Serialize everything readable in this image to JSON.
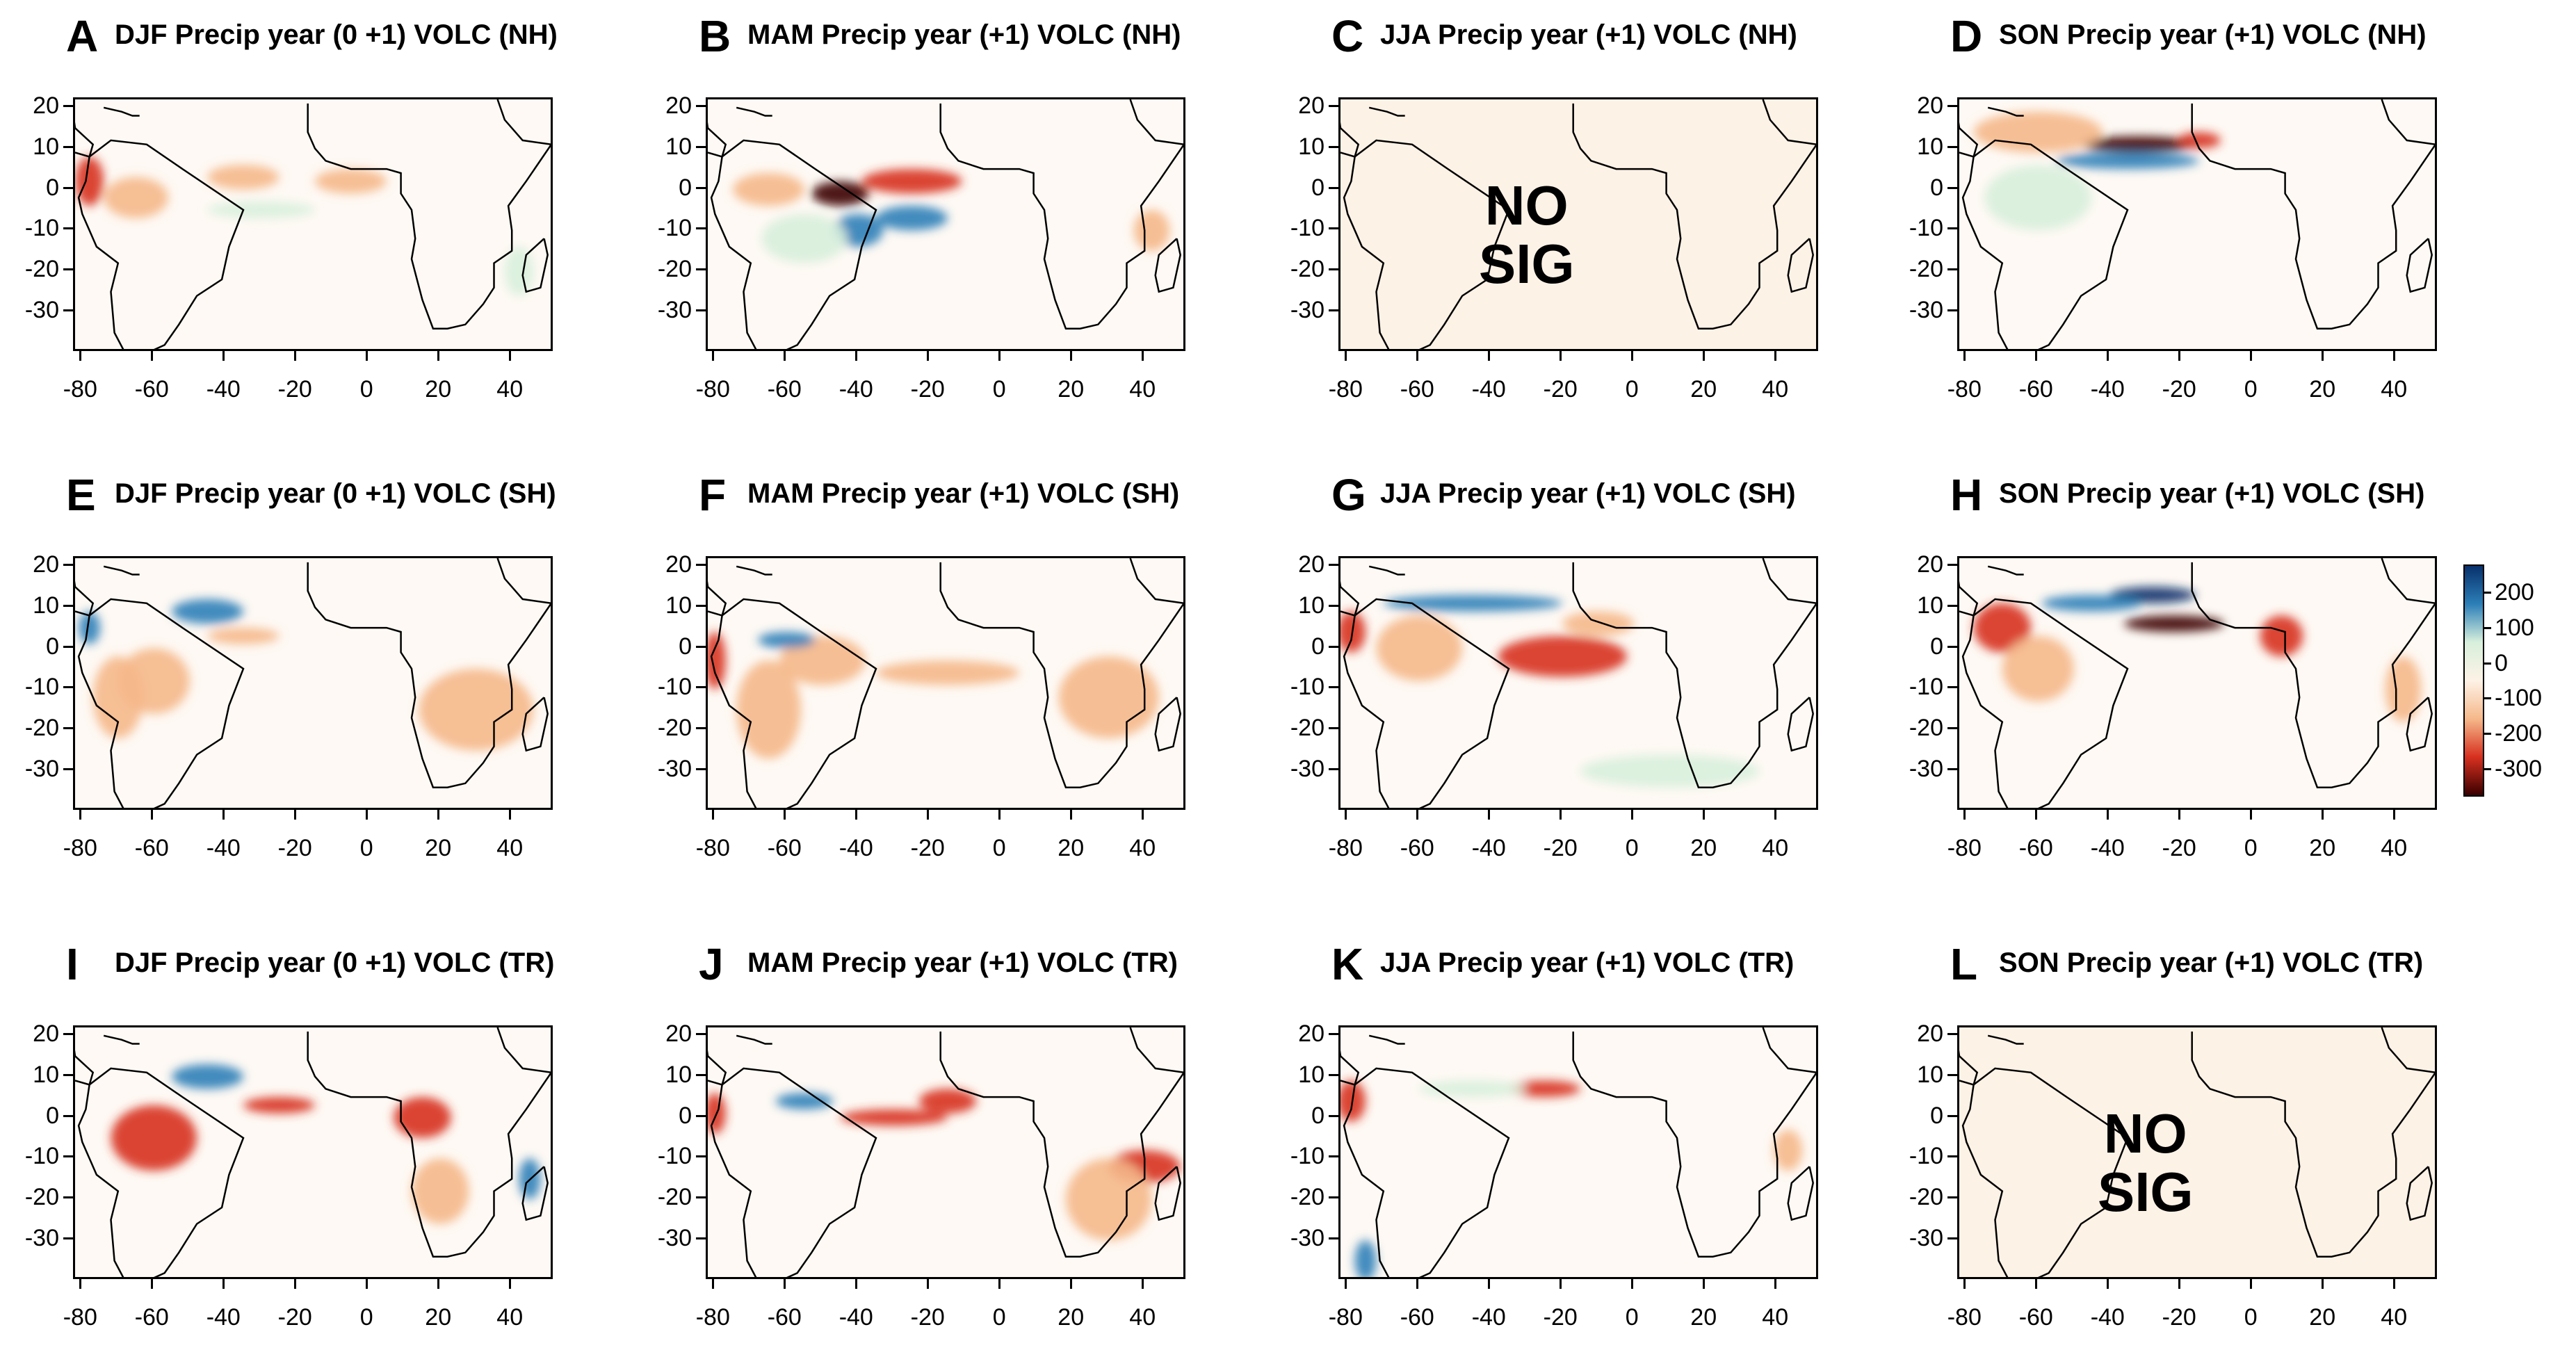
{
  "chart_data": {
    "type": "heatmap",
    "description_units": "precipitation anomaly",
    "x_ticks": [
      -80,
      -60,
      -40,
      -20,
      0,
      20,
      40
    ],
    "y_ticks": [
      20,
      10,
      0,
      -10,
      -20,
      -30
    ],
    "x_range": [
      -82,
      52
    ],
    "y_range": [
      -40,
      22
    ],
    "colorbar": {
      "ticks": [
        200,
        100,
        0,
        -100,
        -200,
        -300
      ],
      "range": [
        -380,
        280
      ],
      "colors": {
        "strong_positive": "#08306b",
        "positive": "#2c7fb8",
        "weak_positive": "#d8f0dc",
        "zero": "#fdf2e6",
        "weak_negative": "#f5b88a",
        "negative": "#d7301f",
        "strong_negative": "#3a0000"
      }
    },
    "panels": [
      {
        "letter": "A",
        "title": "DJF Precip year (0 +1) VOLC (NH)",
        "significant": true,
        "anomalies": [
          {
            "lon": -78,
            "lat": 2,
            "value": -180,
            "rx": 4,
            "ry": 6
          },
          {
            "lon": -65,
            "lat": -2,
            "value": -110,
            "rx": 9,
            "ry": 5
          },
          {
            "lon": -35,
            "lat": 3,
            "value": -130,
            "rx": 10,
            "ry": 3
          },
          {
            "lon": -5,
            "lat": 2,
            "value": -90,
            "rx": 10,
            "ry": 3
          },
          {
            "lon": -30,
            "lat": -5,
            "value": 60,
            "rx": 15,
            "ry": 2
          },
          {
            "lon": 42,
            "lat": -20,
            "value": 50,
            "rx": 4,
            "ry": 6
          }
        ]
      },
      {
        "letter": "B",
        "title": "MAM Precip year (+1) VOLC (NH)",
        "significant": true,
        "anomalies": [
          {
            "lon": -45,
            "lat": -1,
            "value": -300,
            "rx": 8,
            "ry": 3
          },
          {
            "lon": -25,
            "lat": 2,
            "value": -220,
            "rx": 14,
            "ry": 3
          },
          {
            "lon": -65,
            "lat": 0,
            "value": -120,
            "rx": 10,
            "ry": 4
          },
          {
            "lon": -40,
            "lat": -10,
            "value": 180,
            "rx": 7,
            "ry": 4
          },
          {
            "lon": -25,
            "lat": -7,
            "value": 140,
            "rx": 10,
            "ry": 3
          },
          {
            "lon": -55,
            "lat": -12,
            "value": 60,
            "rx": 12,
            "ry": 6
          },
          {
            "lon": 42,
            "lat": -10,
            "value": -110,
            "rx": 5,
            "ry": 5
          }
        ]
      },
      {
        "letter": "C",
        "title": "JJA Precip year (+1) VOLC (NH)",
        "significant": false,
        "no_sig_label": [
          "NO",
          "SIG"
        ],
        "anomalies": []
      },
      {
        "letter": "D",
        "title": "SON Precip year (+1) VOLC (NH)",
        "significant": true,
        "anomalies": [
          {
            "lon": -32,
            "lat": 11,
            "value": -340,
            "rx": 16,
            "ry": 2
          },
          {
            "lon": -15,
            "lat": 12,
            "value": -260,
            "rx": 6,
            "ry": 2
          },
          {
            "lon": -60,
            "lat": 14,
            "value": -90,
            "rx": 18,
            "ry": 5
          },
          {
            "lon": -35,
            "lat": 7,
            "value": 130,
            "rx": 20,
            "ry": 2
          },
          {
            "lon": -60,
            "lat": -2,
            "value": 50,
            "rx": 15,
            "ry": 8
          }
        ]
      },
      {
        "letter": "E",
        "title": "DJF Precip year (0 +1) VOLC (SH)",
        "significant": true,
        "anomalies": [
          {
            "lon": -45,
            "lat": 9,
            "value": 140,
            "rx": 10,
            "ry": 3
          },
          {
            "lon": -78,
            "lat": 5,
            "value": 200,
            "rx": 3,
            "ry": 4
          },
          {
            "lon": -35,
            "lat": 3,
            "value": -90,
            "rx": 10,
            "ry": 2
          },
          {
            "lon": -60,
            "lat": -8,
            "value": -140,
            "rx": 10,
            "ry": 8
          },
          {
            "lon": -70,
            "lat": -12,
            "value": -100,
            "rx": 7,
            "ry": 10
          },
          {
            "lon": 30,
            "lat": -15,
            "value": -90,
            "rx": 16,
            "ry": 10
          }
        ]
      },
      {
        "letter": "F",
        "title": "MAM Precip year (+1) VOLC (SH)",
        "significant": true,
        "anomalies": [
          {
            "lon": -80,
            "lat": -3,
            "value": -250,
            "rx": 3,
            "ry": 7
          },
          {
            "lon": -65,
            "lat": -15,
            "value": -130,
            "rx": 9,
            "ry": 12
          },
          {
            "lon": -50,
            "lat": -3,
            "value": -90,
            "rx": 12,
            "ry": 6
          },
          {
            "lon": -60,
            "lat": 2,
            "value": 120,
            "rx": 8,
            "ry": 2
          },
          {
            "lon": -15,
            "lat": -6,
            "value": -70,
            "rx": 20,
            "ry": 3
          },
          {
            "lon": 30,
            "lat": -12,
            "value": -80,
            "rx": 14,
            "ry": 10
          }
        ]
      },
      {
        "letter": "G",
        "title": "JJA Precip year (+1) VOLC (SH)",
        "significant": true,
        "anomalies": [
          {
            "lon": -45,
            "lat": 11,
            "value": 160,
            "rx": 25,
            "ry": 2
          },
          {
            "lon": -79,
            "lat": 4,
            "value": -220,
            "rx": 4,
            "ry": 5
          },
          {
            "lon": -20,
            "lat": -2,
            "value": -150,
            "rx": 18,
            "ry": 5
          },
          {
            "lon": -10,
            "lat": 6,
            "value": -100,
            "rx": 10,
            "ry": 3
          },
          {
            "lon": -60,
            "lat": 0,
            "value": -70,
            "rx": 12,
            "ry": 8
          },
          {
            "lon": 10,
            "lat": -30,
            "value": 50,
            "rx": 25,
            "ry": 4
          }
        ]
      },
      {
        "letter": "H",
        "title": "SON Precip year (+1) VOLC (SH)",
        "significant": true,
        "anomalies": [
          {
            "lon": -28,
            "lat": 13,
            "value": 260,
            "rx": 12,
            "ry": 2
          },
          {
            "lon": -45,
            "lat": 11,
            "value": 150,
            "rx": 14,
            "ry": 2
          },
          {
            "lon": -22,
            "lat": 6,
            "value": -360,
            "rx": 14,
            "ry": 2
          },
          {
            "lon": -70,
            "lat": 5,
            "value": -180,
            "rx": 8,
            "ry": 6
          },
          {
            "lon": -60,
            "lat": -5,
            "value": -100,
            "rx": 10,
            "ry": 8
          },
          {
            "lon": 8,
            "lat": 3,
            "value": -160,
            "rx": 6,
            "ry": 5
          },
          {
            "lon": 42,
            "lat": -10,
            "value": -60,
            "rx": 5,
            "ry": 8
          }
        ]
      },
      {
        "letter": "I",
        "title": "DJF Precip year (0 +1) VOLC (TR)",
        "significant": true,
        "anomalies": [
          {
            "lon": -45,
            "lat": 10,
            "value": 140,
            "rx": 10,
            "ry": 3
          },
          {
            "lon": -25,
            "lat": 3,
            "value": -220,
            "rx": 10,
            "ry": 2
          },
          {
            "lon": -60,
            "lat": -5,
            "value": -170,
            "rx": 12,
            "ry": 8
          },
          {
            "lon": 15,
            "lat": 0,
            "value": -160,
            "rx": 8,
            "ry": 5
          },
          {
            "lon": 20,
            "lat": -18,
            "value": -110,
            "rx": 8,
            "ry": 8
          },
          {
            "lon": 45,
            "lat": -15,
            "value": 150,
            "rx": 3,
            "ry": 5
          }
        ]
      },
      {
        "letter": "J",
        "title": "MAM Precip year (+1) VOLC (TR)",
        "significant": true,
        "anomalies": [
          {
            "lon": -80,
            "lat": 1,
            "value": -240,
            "rx": 3,
            "ry": 5
          },
          {
            "lon": -55,
            "lat": 4,
            "value": 130,
            "rx": 8,
            "ry": 2
          },
          {
            "lon": -30,
            "lat": 0,
            "value": -170,
            "rx": 15,
            "ry": 2
          },
          {
            "lon": -15,
            "lat": 4,
            "value": -200,
            "rx": 8,
            "ry": 3
          },
          {
            "lon": 40,
            "lat": -12,
            "value": -220,
            "rx": 10,
            "ry": 4
          },
          {
            "lon": 30,
            "lat": -20,
            "value": -90,
            "rx": 12,
            "ry": 10
          }
        ]
      },
      {
        "letter": "K",
        "title": "JJA Precip year (+1) VOLC (TR)",
        "significant": true,
        "anomalies": [
          {
            "lon": -79,
            "lat": 4,
            "value": -200,
            "rx": 4,
            "ry": 5
          },
          {
            "lon": -25,
            "lat": 7,
            "value": -150,
            "rx": 10,
            "ry": 2
          },
          {
            "lon": -45,
            "lat": 7,
            "value": 80,
            "rx": 15,
            "ry": 2
          },
          {
            "lon": -75,
            "lat": -35,
            "value": 120,
            "rx": 3,
            "ry": 5
          },
          {
            "lon": 43,
            "lat": -8,
            "value": -90,
            "rx": 4,
            "ry": 5
          }
        ]
      },
      {
        "letter": "L",
        "title": "SON Precip year (+1) VOLC (TR)",
        "significant": false,
        "no_sig_label": [
          "NO",
          "SIG"
        ],
        "anomalies": []
      }
    ]
  }
}
